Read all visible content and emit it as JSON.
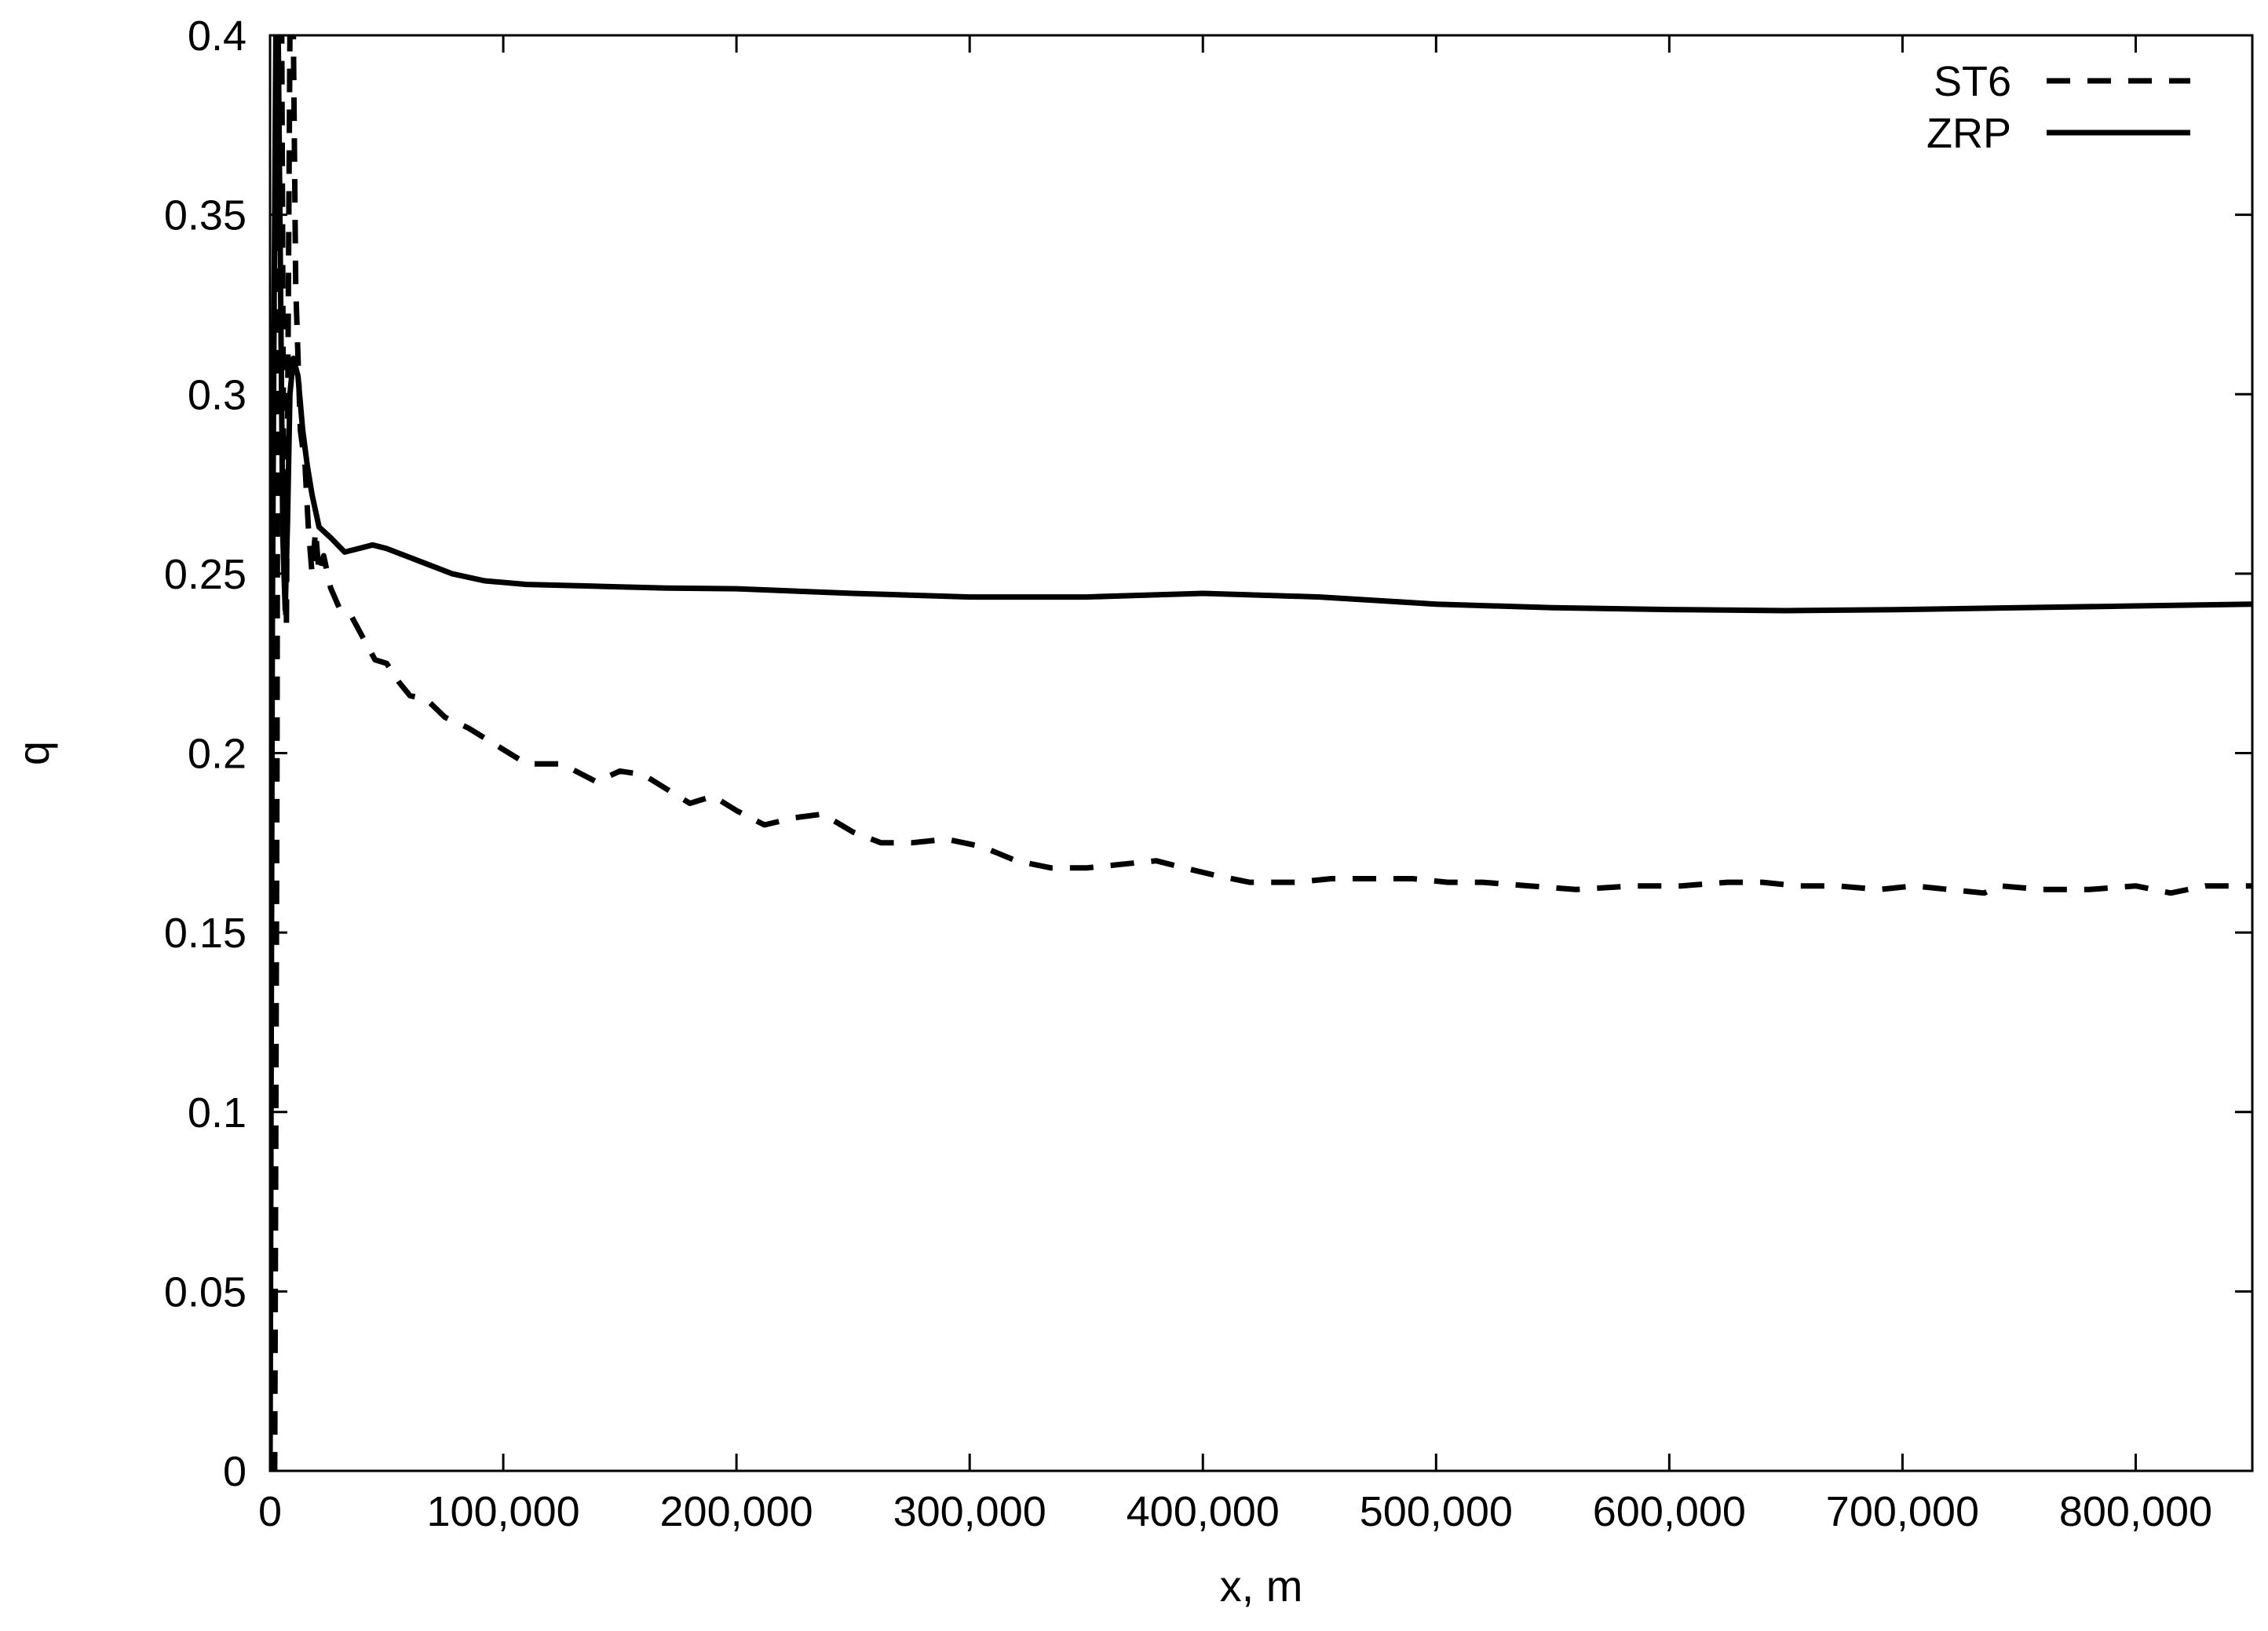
{
  "chart_data": {
    "type": "line",
    "title": "",
    "xlabel": "x, m",
    "ylabel": "q",
    "xlim": [
      0,
      850000
    ],
    "ylim": [
      0,
      0.4
    ],
    "grid": false,
    "legend_position": "top-right",
    "x_ticks": [
      {
        "value": 0,
        "label": "0"
      },
      {
        "value": 100000,
        "label": "100,000"
      },
      {
        "value": 200000,
        "label": "200,000"
      },
      {
        "value": 300000,
        "label": "300,000"
      },
      {
        "value": 400000,
        "label": "400,000"
      },
      {
        "value": 500000,
        "label": "500,000"
      },
      {
        "value": 600000,
        "label": "600,000"
      },
      {
        "value": 700000,
        "label": "700,000"
      },
      {
        "value": 800000,
        "label": "800,000"
      }
    ],
    "y_ticks": [
      {
        "value": 0,
        "label": "0"
      },
      {
        "value": 0.05,
        "label": "0.05"
      },
      {
        "value": 0.1,
        "label": "0.1"
      },
      {
        "value": 0.15,
        "label": "0.15"
      },
      {
        "value": 0.2,
        "label": "0.2"
      },
      {
        "value": 0.25,
        "label": "0.25"
      },
      {
        "value": 0.3,
        "label": "0.3"
      },
      {
        "value": 0.35,
        "label": "0.35"
      },
      {
        "value": 0.4,
        "label": "0.4"
      }
    ],
    "series": [
      {
        "name": "ST6",
        "style": "dashed",
        "color": "#000000",
        "points": [
          [
            0,
            0.0
          ],
          [
            2000,
            0.0
          ],
          [
            3000,
            0.2
          ],
          [
            3500,
            0.4
          ],
          [
            5000,
            0.4
          ],
          [
            6000,
            0.25
          ],
          [
            7000,
            0.235
          ],
          [
            8500,
            0.4
          ],
          [
            10000,
            0.4
          ],
          [
            11000,
            0.33
          ],
          [
            13000,
            0.29
          ],
          [
            15000,
            0.28
          ],
          [
            16500,
            0.262
          ],
          [
            18000,
            0.25
          ],
          [
            19500,
            0.262
          ],
          [
            21000,
            0.25
          ],
          [
            23000,
            0.255
          ],
          [
            26000,
            0.246
          ],
          [
            30000,
            0.24
          ],
          [
            35000,
            0.238
          ],
          [
            40000,
            0.232
          ],
          [
            45000,
            0.226
          ],
          [
            50000,
            0.225
          ],
          [
            55000,
            0.22
          ],
          [
            60000,
            0.216
          ],
          [
            67000,
            0.215
          ],
          [
            75000,
            0.21
          ],
          [
            85000,
            0.207
          ],
          [
            95000,
            0.203
          ],
          [
            110000,
            0.197
          ],
          [
            125000,
            0.197
          ],
          [
            140000,
            0.192
          ],
          [
            150000,
            0.195
          ],
          [
            160000,
            0.194
          ],
          [
            170000,
            0.19
          ],
          [
            180000,
            0.186
          ],
          [
            190000,
            0.188
          ],
          [
            200000,
            0.184
          ],
          [
            212000,
            0.18
          ],
          [
            225000,
            0.182
          ],
          [
            237000,
            0.183
          ],
          [
            250000,
            0.178
          ],
          [
            262000,
            0.175
          ],
          [
            275000,
            0.175
          ],
          [
            290000,
            0.176
          ],
          [
            305000,
            0.174
          ],
          [
            320000,
            0.17
          ],
          [
            335000,
            0.168
          ],
          [
            350000,
            0.168
          ],
          [
            365000,
            0.169
          ],
          [
            380000,
            0.17
          ],
          [
            392000,
            0.168
          ],
          [
            405000,
            0.166
          ],
          [
            420000,
            0.164
          ],
          [
            440000,
            0.164
          ],
          [
            455000,
            0.165
          ],
          [
            470000,
            0.165
          ],
          [
            490000,
            0.165
          ],
          [
            505000,
            0.164
          ],
          [
            520000,
            0.164
          ],
          [
            540000,
            0.163
          ],
          [
            560000,
            0.162
          ],
          [
            585000,
            0.163
          ],
          [
            605000,
            0.163
          ],
          [
            625000,
            0.164
          ],
          [
            640000,
            0.164
          ],
          [
            655000,
            0.163
          ],
          [
            672000,
            0.163
          ],
          [
            690000,
            0.162
          ],
          [
            705000,
            0.163
          ],
          [
            720000,
            0.162
          ],
          [
            735000,
            0.161
          ],
          [
            742000,
            0.163
          ],
          [
            760000,
            0.162
          ],
          [
            780000,
            0.162
          ],
          [
            800000,
            0.163
          ],
          [
            815000,
            0.161
          ],
          [
            830000,
            0.163
          ],
          [
            850000,
            0.163
          ]
        ]
      },
      {
        "name": "ZRP",
        "style": "solid",
        "color": "#000000",
        "points": [
          [
            0,
            0.0
          ],
          [
            1000,
            0.24
          ],
          [
            1800,
            0.33
          ],
          [
            2500,
            0.4
          ],
          [
            3500,
            0.4
          ],
          [
            4500,
            0.33
          ],
          [
            5500,
            0.26
          ],
          [
            6500,
            0.24
          ],
          [
            7500,
            0.265
          ],
          [
            8500,
            0.3
          ],
          [
            10000,
            0.31
          ],
          [
            12000,
            0.305
          ],
          [
            14000,
            0.29
          ],
          [
            16000,
            0.28
          ],
          [
            18000,
            0.272
          ],
          [
            21000,
            0.263
          ],
          [
            26000,
            0.26
          ],
          [
            32000,
            0.256
          ],
          [
            38000,
            0.257
          ],
          [
            44000,
            0.258
          ],
          [
            50000,
            0.257
          ],
          [
            58000,
            0.255
          ],
          [
            66000,
            0.253
          ],
          [
            78000,
            0.25
          ],
          [
            92000,
            0.248
          ],
          [
            110000,
            0.247
          ],
          [
            140000,
            0.2465
          ],
          [
            170000,
            0.246
          ],
          [
            200000,
            0.2458
          ],
          [
            250000,
            0.2445
          ],
          [
            300000,
            0.2435
          ],
          [
            350000,
            0.2435
          ],
          [
            400000,
            0.2445
          ],
          [
            450000,
            0.2435
          ],
          [
            500000,
            0.2415
          ],
          [
            550000,
            0.2405
          ],
          [
            600000,
            0.24
          ],
          [
            650000,
            0.2397
          ],
          [
            700000,
            0.24
          ],
          [
            750000,
            0.2405
          ],
          [
            800000,
            0.241
          ],
          [
            850000,
            0.2415
          ]
        ]
      }
    ]
  }
}
